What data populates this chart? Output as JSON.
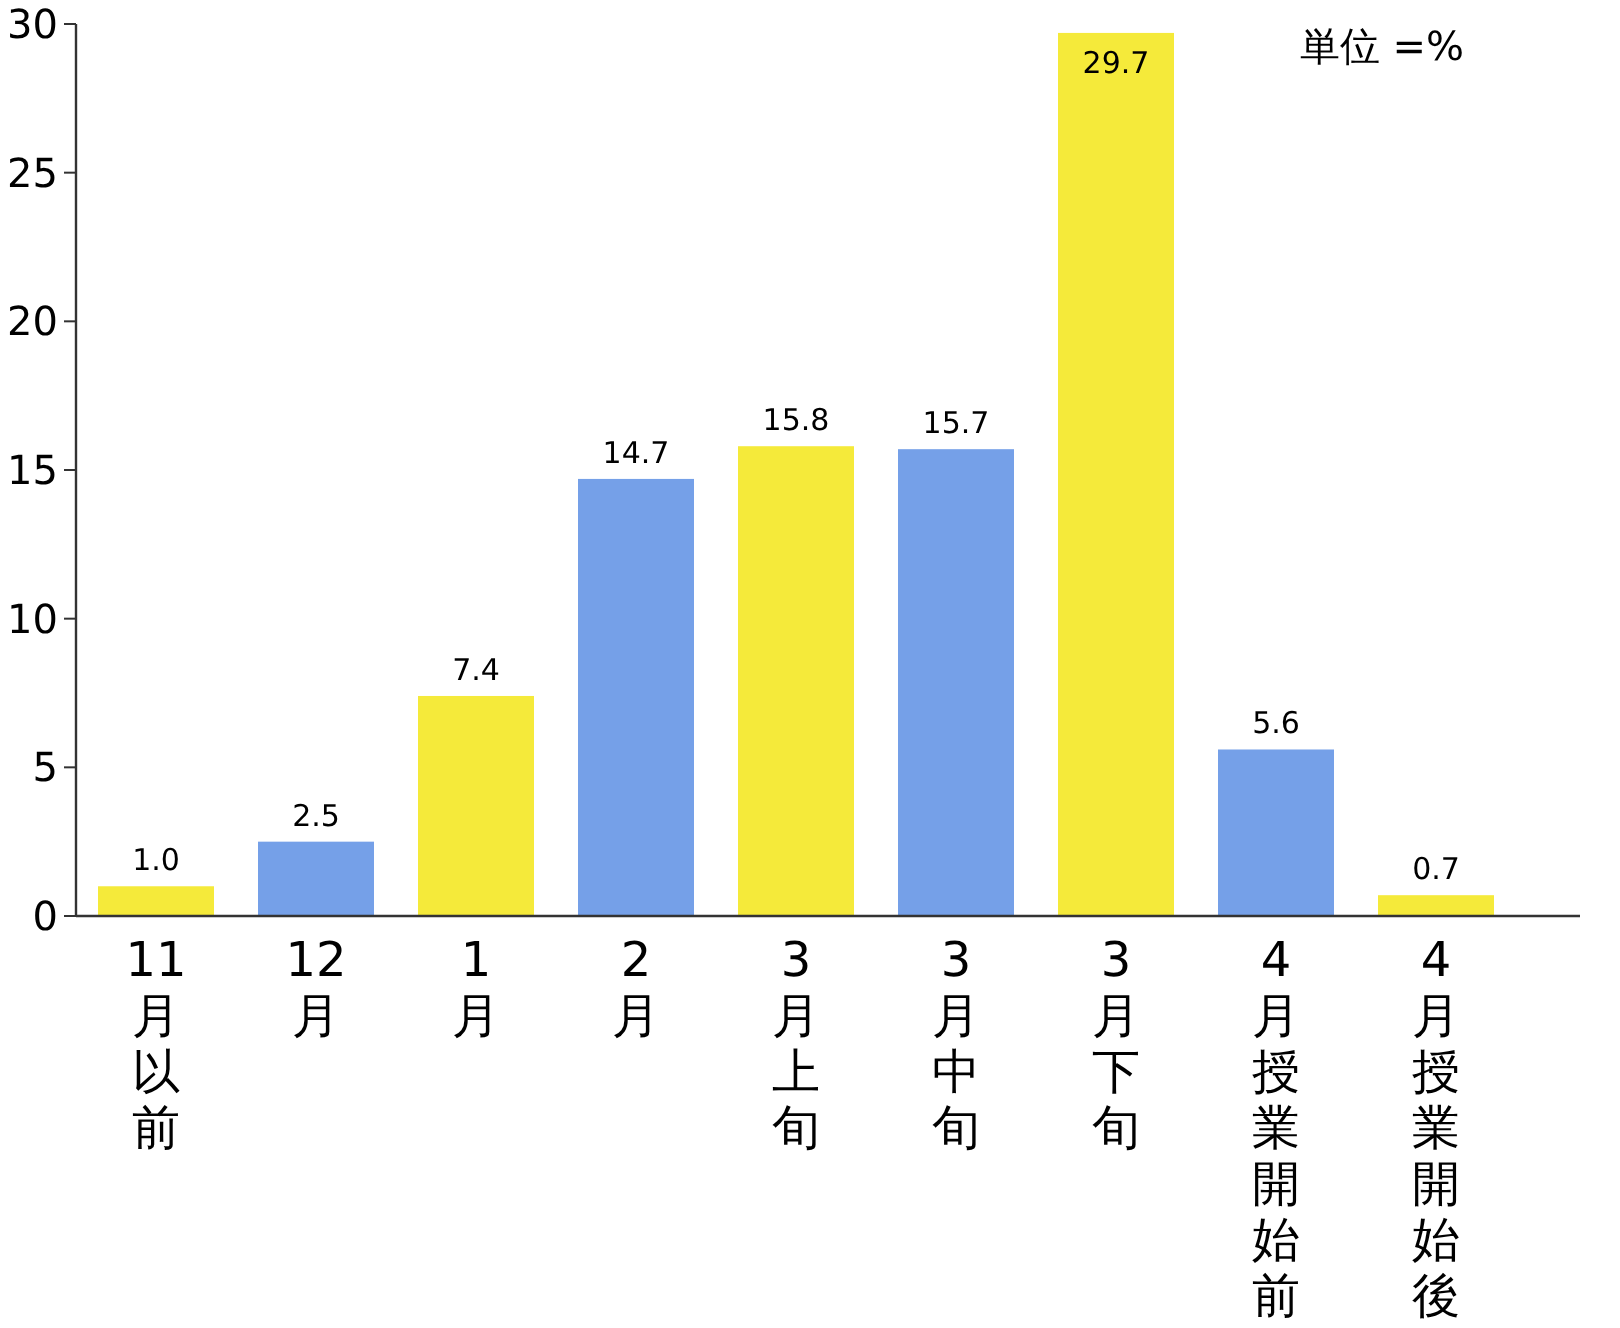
{
  "chart_data": {
    "type": "bar",
    "categories": [
      "11月以前",
      "12月",
      "1月",
      "2月",
      "3月上旬",
      "3月中旬",
      "3月下旬",
      "4月授業開始前",
      "4月授業開始後"
    ],
    "values": [
      1.0,
      2.5,
      7.4,
      14.7,
      15.8,
      15.7,
      29.7,
      5.6,
      0.7
    ],
    "value_labels": [
      "1.0",
      "2.5",
      "7.4",
      "14.7",
      "15.8",
      "15.7",
      "29.7",
      "5.6",
      "0.7"
    ],
    "colors": [
      "#f5ea3a",
      "#75a0e8",
      "#f5ea3a",
      "#75a0e8",
      "#f5ea3a",
      "#75a0e8",
      "#f5ea3a",
      "#75a0e8",
      "#f5ea3a"
    ],
    "ylim": [
      0,
      30
    ],
    "yticks": [
      0,
      5,
      10,
      15,
      20,
      25,
      30
    ],
    "grid": false,
    "annotations": [
      "単位 =%"
    ]
  }
}
